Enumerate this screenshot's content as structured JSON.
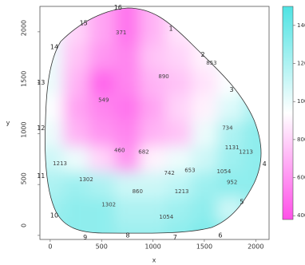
{
  "chart_data": {
    "type": "contour",
    "x_label": "x",
    "y_label": "y",
    "xlim": [
      -100,
      2130
    ],
    "ylim": [
      -40,
      2250
    ],
    "xticks": [
      0,
      500,
      1000,
      1500,
      2000
    ],
    "yticks": [
      0,
      500,
      1000,
      1500,
      2000
    ],
    "colormap": [
      "#ff4fe8",
      "#ffffff",
      "#4fe3e3"
    ],
    "clim": [
      380,
      1500
    ],
    "colorbar_ticks": [
      400,
      600,
      800,
      1000,
      1200,
      1400
    ],
    "grid_x": [
      0,
      250,
      500,
      750,
      1000,
      1250,
      1500,
      1750,
      2000
    ],
    "grid_y": [
      0,
      250,
      500,
      750,
      1000,
      1250,
      1500,
      1750,
      2000
    ],
    "z": [
      [
        1300,
        1300,
        1300,
        1250,
        1250,
        1300,
        1350,
        1300,
        1300
      ],
      [
        1250,
        1300,
        1300,
        1200,
        1200,
        1250,
        1300,
        1100,
        1250
      ],
      [
        1200,
        1250,
        1200,
        1100,
        1100,
        1150,
        1250,
        1300,
        1300
      ],
      [
        1100,
        1000,
        800,
        600,
        900,
        1000,
        1100,
        1250,
        1300
      ],
      [
        1000,
        700,
        600,
        550,
        700,
        750,
        1000,
        1200,
        1300
      ],
      [
        950,
        650,
        550,
        500,
        650,
        800,
        900,
        1050,
        1200
      ],
      [
        1000,
        700,
        450,
        550,
        700,
        750,
        850,
        950,
        1100
      ],
      [
        1000,
        750,
        600,
        550,
        750,
        800,
        900,
        1000,
        1100
      ],
      [
        1000,
        800,
        650,
        500,
        700,
        850,
        900,
        1000,
        1000
      ]
    ],
    "stations": [
      {
        "label": "1",
        "x": 1175,
        "y": 2030
      },
      {
        "label": "2",
        "x": 1485,
        "y": 1775
      },
      {
        "label": "3",
        "x": 1765,
        "y": 1430
      },
      {
        "label": "4",
        "x": 2085,
        "y": 700
      },
      {
        "label": "5",
        "x": 1865,
        "y": 330
      },
      {
        "label": "6",
        "x": 1655,
        "y": 0
      },
      {
        "label": "7",
        "x": 1215,
        "y": -20
      },
      {
        "label": "8",
        "x": 755,
        "y": 0
      },
      {
        "label": "9",
        "x": 340,
        "y": -20
      },
      {
        "label": "10",
        "x": 40,
        "y": 195
      },
      {
        "label": "11",
        "x": -90,
        "y": 585
      },
      {
        "label": "12",
        "x": -90,
        "y": 1055
      },
      {
        "label": "13",
        "x": -90,
        "y": 1500
      },
      {
        "label": "14",
        "x": 40,
        "y": 1850
      },
      {
        "label": "15",
        "x": 325,
        "y": 2085
      },
      {
        "label": "16",
        "x": 660,
        "y": 2240
      }
    ],
    "contour_labels": [
      {
        "label": "1213",
        "x": 95,
        "y": 705
      },
      {
        "label": "1302",
        "x": 350,
        "y": 550
      },
      {
        "label": "1302",
        "x": 570,
        "y": 300
      },
      {
        "label": "1213",
        "x": 1280,
        "y": 430
      },
      {
        "label": "1054",
        "x": 1690,
        "y": 625
      },
      {
        "label": "952",
        "x": 1770,
        "y": 520
      },
      {
        "label": "1131",
        "x": 1770,
        "y": 860
      },
      {
        "label": "1213",
        "x": 1905,
        "y": 820
      },
      {
        "label": "734",
        "x": 1725,
        "y": 1055
      },
      {
        "label": "890",
        "x": 1105,
        "y": 1560
      },
      {
        "label": "853",
        "x": 1570,
        "y": 1695
      },
      {
        "label": "549",
        "x": 520,
        "y": 1330
      },
      {
        "label": "460",
        "x": 675,
        "y": 835
      },
      {
        "label": "371",
        "x": 690,
        "y": 1990
      },
      {
        "label": "682",
        "x": 910,
        "y": 820
      },
      {
        "label": "742",
        "x": 1160,
        "y": 610
      },
      {
        "label": "653",
        "x": 1360,
        "y": 640
      },
      {
        "label": "860",
        "x": 850,
        "y": 430
      },
      {
        "label": "1054",
        "x": 1130,
        "y": 180
      }
    ]
  }
}
